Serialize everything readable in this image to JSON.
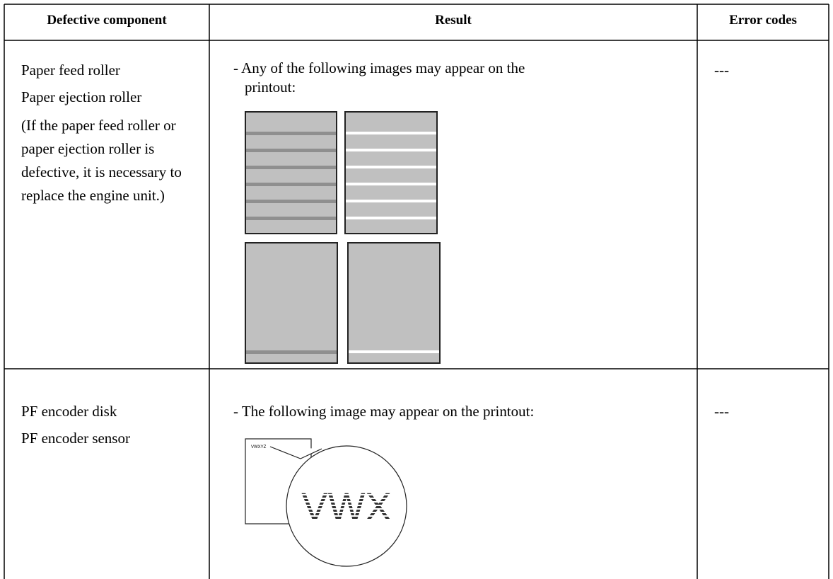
{
  "table": {
    "headers": [
      "Defective component",
      "Result",
      "Error codes"
    ],
    "rows": [
      {
        "components": [
          "Paper feed roller",
          "Paper ejection roller"
        ],
        "note": "(If the paper feed roller or paper ejection roller is defective, it is necessary to replace the engine unit.)",
        "result": "- Any of the following images may appear on the printout:",
        "error_codes": "---"
      },
      {
        "components": [
          "PF encoder disk",
          "PF encoder sensor"
        ],
        "result": "- The following image may appear on the printout:",
        "error_codes": "---",
        "illustration": {
          "small_text": "VWXYZ",
          "magnified_text": "VWX"
        }
      }
    ]
  }
}
